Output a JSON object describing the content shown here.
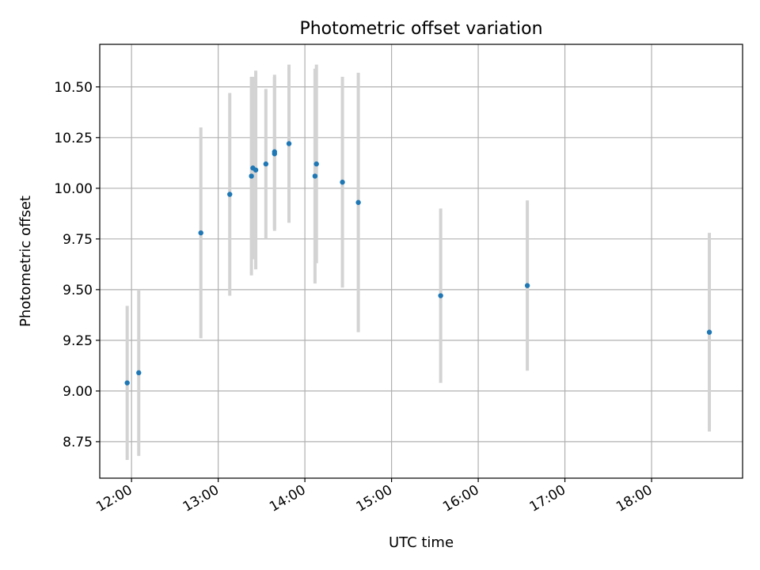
{
  "chart_data": {
    "type": "scatter",
    "title": "Photometric offset variation",
    "xlabel": "UTC time",
    "ylabel": "Photometric offset",
    "xlim": [
      "11:38",
      "19:03"
    ],
    "ylim": [
      8.57,
      10.71
    ],
    "x_ticks": [
      "12:00",
      "13:00",
      "14:00",
      "15:00",
      "16:00",
      "17:00",
      "18:00"
    ],
    "y_ticks": [
      8.75,
      9.0,
      9.25,
      9.5,
      9.75,
      10.0,
      10.25,
      10.5
    ],
    "y_tick_labels": [
      "8.75",
      "9.00",
      "9.25",
      "9.50",
      "9.75",
      "10.00",
      "10.25",
      "10.50"
    ],
    "grid": true,
    "point_color": "#1f77b4",
    "errorbar_color": "#d3d3d3",
    "points": [
      {
        "time": "11:57",
        "y": 9.04,
        "err": 0.38
      },
      {
        "time": "12:05",
        "y": 9.09,
        "err": 0.41
      },
      {
        "time": "12:48",
        "y": 9.78,
        "err": 0.52
      },
      {
        "time": "13:08",
        "y": 9.97,
        "err": 0.5
      },
      {
        "time": "13:23",
        "y": 10.06,
        "err": 0.49
      },
      {
        "time": "13:24",
        "y": 10.1,
        "err": 0.45
      },
      {
        "time": "13:26",
        "y": 10.09,
        "err": 0.49
      },
      {
        "time": "13:33",
        "y": 10.12,
        "err": 0.37
      },
      {
        "time": "13:39",
        "y": 10.18,
        "err": 0.38
      },
      {
        "time": "13:39",
        "y": 10.17,
        "err": 0.38
      },
      {
        "time": "13:49",
        "y": 10.22,
        "err": 0.39
      },
      {
        "time": "14:07",
        "y": 10.06,
        "err": 0.53
      },
      {
        "time": "14:08",
        "y": 10.12,
        "err": 0.49
      },
      {
        "time": "14:26",
        "y": 10.03,
        "err": 0.52
      },
      {
        "time": "14:37",
        "y": 9.93,
        "err": 0.64
      },
      {
        "time": "15:34",
        "y": 9.47,
        "err": 0.43
      },
      {
        "time": "16:34",
        "y": 9.52,
        "err": 0.42
      },
      {
        "time": "18:40",
        "y": 9.29,
        "err": 0.49
      }
    ]
  }
}
